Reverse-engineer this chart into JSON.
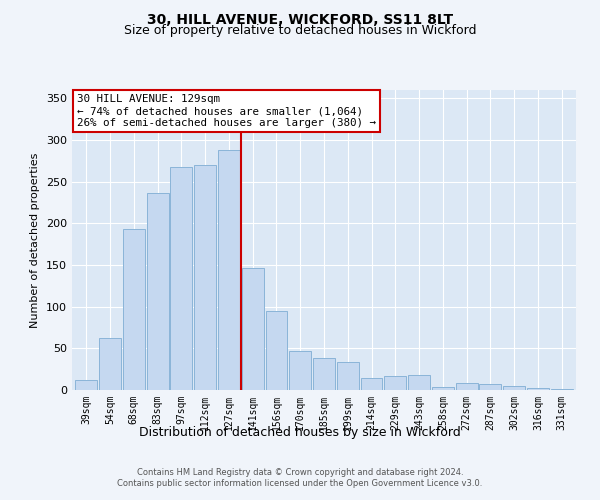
{
  "title1": "30, HILL AVENUE, WICKFORD, SS11 8LT",
  "title2": "Size of property relative to detached houses in Wickford",
  "xlabel": "Distribution of detached houses by size in Wickford",
  "ylabel": "Number of detached properties",
  "annotation_line1": "30 HILL AVENUE: 129sqm",
  "annotation_line2": "← 74% of detached houses are smaller (1,064)",
  "annotation_line3": "26% of semi-detached houses are larger (380) →",
  "categories": [
    "39sqm",
    "54sqm",
    "68sqm",
    "83sqm",
    "97sqm",
    "112sqm",
    "127sqm",
    "141sqm",
    "156sqm",
    "170sqm",
    "185sqm",
    "199sqm",
    "214sqm",
    "229sqm",
    "243sqm",
    "258sqm",
    "272sqm",
    "287sqm",
    "302sqm",
    "316sqm",
    "331sqm"
  ],
  "bar_heights": [
    12,
    62,
    193,
    236,
    268,
    270,
    288,
    147,
    95,
    47,
    38,
    34,
    15,
    17,
    18,
    4,
    9,
    7,
    5,
    3,
    1
  ],
  "bar_color": "#c5d8f0",
  "bar_edge_color": "#8ab4d8",
  "vline_color": "#cc0000",
  "vline_x_index": 6.5,
  "ylim": [
    0,
    360
  ],
  "yticks": [
    0,
    50,
    100,
    150,
    200,
    250,
    300,
    350
  ],
  "bg_color": "#dce8f5",
  "grid_color": "#ffffff",
  "fig_bg_color": "#f0f4fa",
  "footer1": "Contains HM Land Registry data © Crown copyright and database right 2024.",
  "footer2": "Contains public sector information licensed under the Open Government Licence v3.0."
}
